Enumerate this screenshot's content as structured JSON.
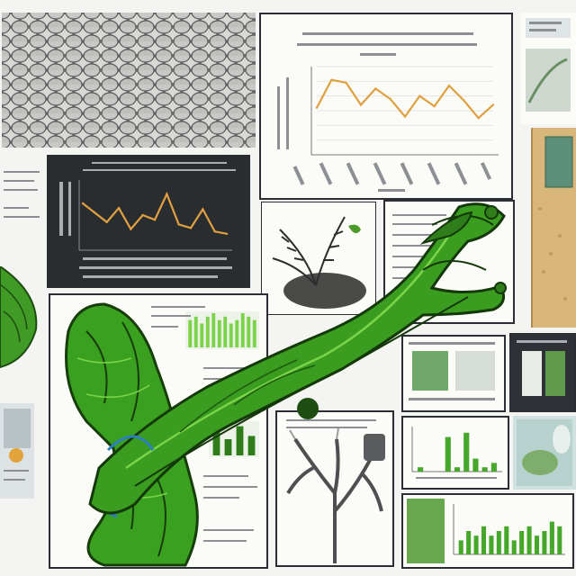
{
  "colors": {
    "background": "#f4f5f2",
    "dark_panel": "#2a2d30",
    "frame": "#2b2f35",
    "chart_line": "#e0a040",
    "green_dark": "#2f7d1a",
    "green_mid": "#45a82a",
    "green_light": "#7bd34a",
    "cork": "#d9b77a"
  },
  "icons": [
    "leaf-icon",
    "fern-icon",
    "branch-icon"
  ],
  "chart_data": [
    {
      "type": "line",
      "series": [
        {
          "values": [
            3.2,
            5.1,
            4.9,
            3.4,
            4.5,
            3.8,
            2.6,
            4.0,
            3.3,
            4.7,
            3.7,
            2.5,
            3.4
          ]
        }
      ],
      "ylim": [
        0,
        6
      ],
      "grid": true
    },
    {
      "type": "line",
      "series": [
        {
          "values": [
            4.0,
            3.2,
            2.4,
            3.6,
            1.8,
            3.0,
            2.6,
            4.8,
            2.2,
            1.9,
            3.5,
            1.6,
            1.4
          ]
        }
      ],
      "ylim": [
        0,
        6
      ],
      "grid": false
    },
    {
      "type": "bar",
      "values": [
        8,
        9,
        7,
        9,
        10,
        8,
        9,
        7,
        8,
        10,
        9,
        8
      ],
      "ylim": [
        0,
        10
      ]
    },
    {
      "type": "bar",
      "values": [
        1,
        0,
        0,
        8,
        1,
        9,
        3,
        1,
        2
      ],
      "ylim": [
        0,
        10
      ]
    },
    {
      "type": "bar",
      "values": [
        3,
        5,
        4,
        6,
        4,
        5,
        6,
        3,
        5,
        6,
        4,
        5,
        7,
        6
      ],
      "ylim": [
        0,
        10
      ]
    },
    {
      "type": "bar",
      "values": [
        8,
        5,
        9,
        6
      ],
      "ylim": [
        0,
        10
      ]
    }
  ]
}
